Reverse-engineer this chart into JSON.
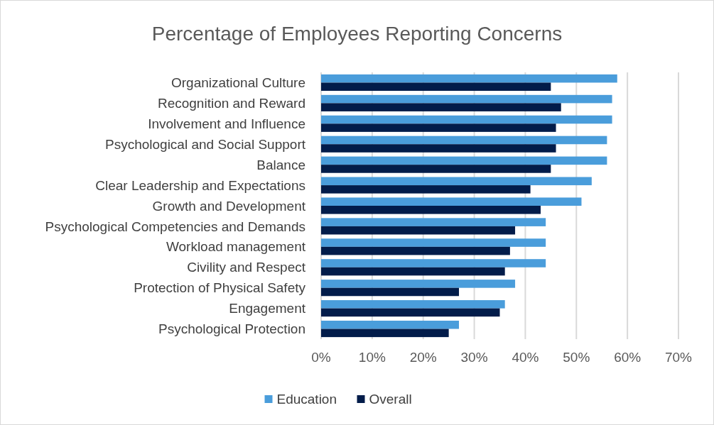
{
  "chart_data": {
    "type": "bar",
    "orientation": "horizontal",
    "title": "Percentage of Employees Reporting Concerns",
    "categories": [
      "Organizational Culture",
      "Recognition and Reward",
      "Involvement and Influence",
      "Psychological and Social Support",
      "Balance",
      "Clear Leadership and Expectations",
      "Growth and Development",
      "Psychological Competencies and Demands",
      "Workload management",
      "Civility and Respect",
      "Protection of Physical Safety",
      "Engagement",
      "Psychological Protection"
    ],
    "series": [
      {
        "name": "Education",
        "color": "#4a9ddb",
        "values": [
          58,
          57,
          57,
          56,
          56,
          53,
          51,
          44,
          44,
          44,
          38,
          36,
          27
        ]
      },
      {
        "name": "Overall",
        "color": "#021c4a",
        "values": [
          45,
          47,
          46,
          46,
          45,
          41,
          43,
          38,
          37,
          36,
          27,
          35,
          25
        ]
      }
    ],
    "xlim": [
      0,
      70
    ],
    "xticks": [
      {
        "value": 0,
        "label": "0%"
      },
      {
        "value": 10,
        "label": "10%"
      },
      {
        "value": 20,
        "label": "20%"
      },
      {
        "value": 30,
        "label": "30%"
      },
      {
        "value": 40,
        "label": "40%"
      },
      {
        "value": 50,
        "label": "50%"
      },
      {
        "value": 60,
        "label": "60%"
      },
      {
        "value": 70,
        "label": "70%"
      }
    ],
    "grid": "x",
    "legend": "bottom"
  }
}
